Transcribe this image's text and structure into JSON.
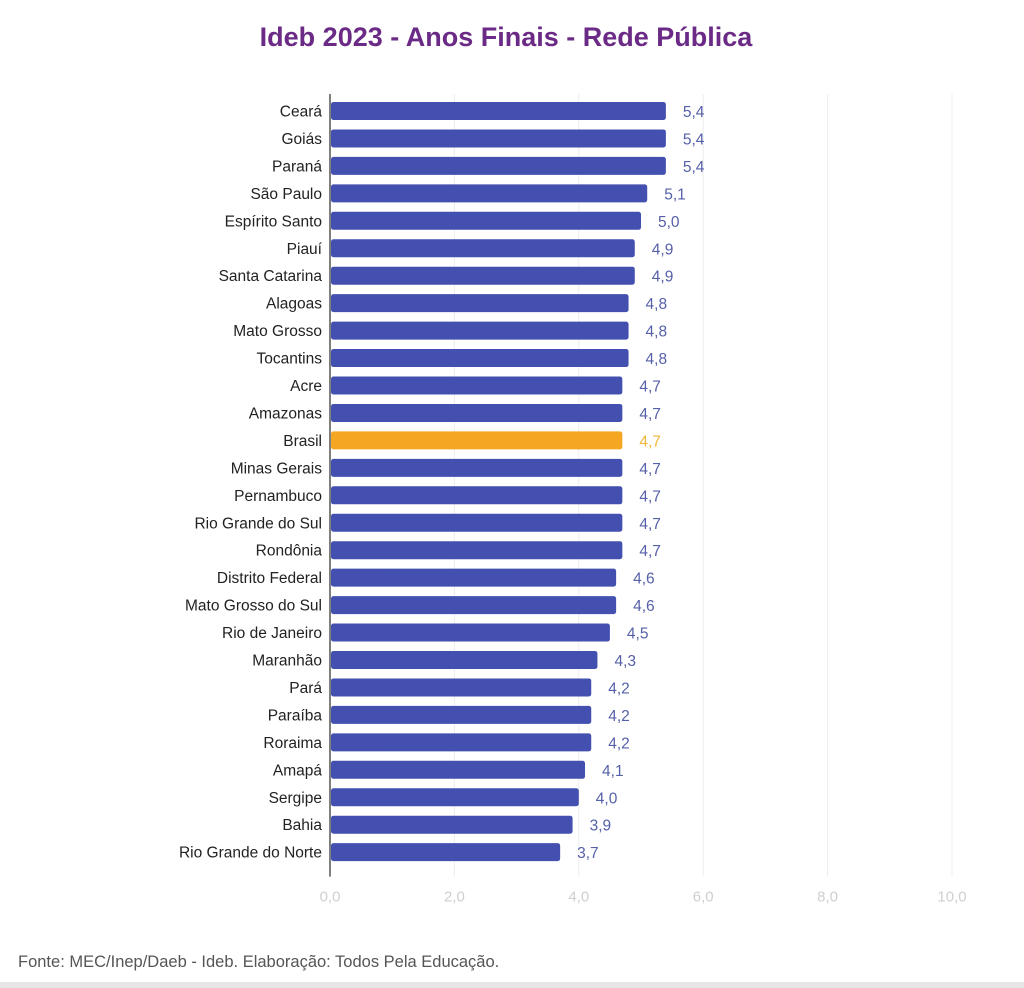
{
  "chart_data": {
    "type": "bar",
    "orientation": "horizontal",
    "title": "Ideb 2023 - Anos Finais - Rede Pública",
    "xlabel": "",
    "ylabel": "",
    "xlim": [
      0,
      10
    ],
    "xticks": [
      0,
      2,
      4,
      6,
      8,
      10
    ],
    "xtick_labels": [
      "0,0",
      "2,0",
      "4,0",
      "6,0",
      "8,0",
      "10,0"
    ],
    "grid": true,
    "categories": [
      "Ceará",
      "Goiás",
      "Paraná",
      "São Paulo",
      "Espírito Santo",
      "Piauí",
      "Santa Catarina",
      "Alagoas",
      "Mato Grosso",
      "Tocantins",
      "Acre",
      "Amazonas",
      "Brasil",
      "Minas Gerais",
      "Pernambuco",
      "Rio Grande do Sul",
      "Rondônia",
      "Distrito Federal",
      "Mato Grosso do Sul",
      "Rio de Janeiro",
      "Maranhão",
      "Pará",
      "Paraíba",
      "Roraima",
      "Amapá",
      "Sergipe",
      "Bahia",
      "Rio Grande do Norte"
    ],
    "values": [
      5.4,
      5.4,
      5.4,
      5.1,
      5.0,
      4.9,
      4.9,
      4.8,
      4.8,
      4.8,
      4.7,
      4.7,
      4.7,
      4.7,
      4.7,
      4.7,
      4.7,
      4.6,
      4.6,
      4.5,
      4.3,
      4.2,
      4.2,
      4.2,
      4.1,
      4.0,
      3.9,
      3.7
    ],
    "value_labels": [
      "5,4",
      "5,4",
      "5,4",
      "5,1",
      "5,0",
      "4,9",
      "4,9",
      "4,8",
      "4,8",
      "4,8",
      "4,7",
      "4,7",
      "4,7",
      "4,7",
      "4,7",
      "4,7",
      "4,7",
      "4,6",
      "4,6",
      "4,5",
      "4,3",
      "4,2",
      "4,2",
      "4,2",
      "4,1",
      "4,0",
      "3,9",
      "3,7"
    ],
    "highlight": "Brasil",
    "colors": {
      "bar": "#4350b0",
      "highlight": "#f5a623",
      "value_label": "#5560a8",
      "highlight_label": "#f0b73a",
      "title": "#6a2a86"
    }
  },
  "source": "Fonte: MEC/Inep/Daeb - Ideb. Elaboração: Todos Pela Educação."
}
